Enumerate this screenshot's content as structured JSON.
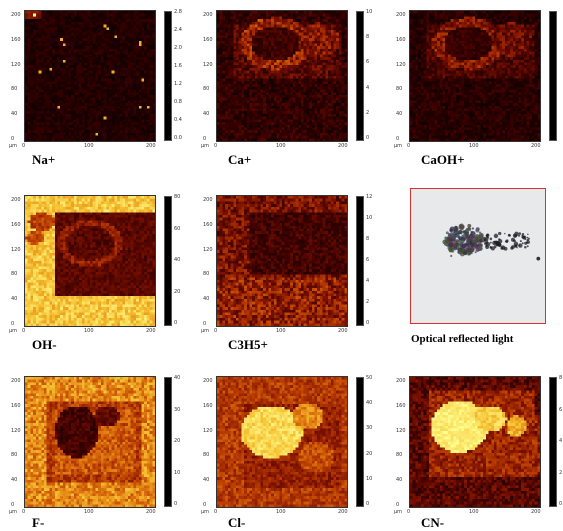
{
  "axis_unit": "μm",
  "x_ticks": [
    "0",
    "100",
    "200"
  ],
  "y_ticks": [
    "200",
    "160",
    "120",
    "80",
    "40",
    "0"
  ],
  "colormap": [
    "#000000",
    "#3a0000",
    "#7a1000",
    "#b83a00",
    "#e07a10",
    "#f5c030",
    "#ffff90"
  ],
  "optical_frame_color": "#d9312b",
  "panels": [
    {
      "label": "Na+",
      "colorbar_ticks": [
        "2.8",
        "2.4",
        "2.0",
        "1.6",
        "1.2",
        "0.8",
        "0.4",
        "0.0"
      ],
      "pattern": "sparse"
    },
    {
      "label": "Ca+",
      "colorbar_ticks": [
        "10",
        "8",
        "6",
        "4",
        "2",
        "0"
      ],
      "pattern": "ring"
    },
    {
      "label": "CaOH+",
      "colorbar_ticks": [
        "",
        "",
        "",
        "",
        "",
        ""
      ],
      "pattern": "ring_dim"
    },
    {
      "label": "OH-",
      "colorbar_ticks": [
        "80",
        "60",
        "40",
        "20",
        "0"
      ],
      "pattern": "oh"
    },
    {
      "label": "C3H5+",
      "colorbar_ticks": [
        "12",
        "10",
        "8",
        "6",
        "4",
        "2",
        "0"
      ],
      "pattern": "c3h5"
    },
    {
      "label": "Optical reflected light",
      "pattern": "optical"
    },
    {
      "label": "F-",
      "colorbar_ticks": [
        "40",
        "30",
        "20",
        "10",
        "0"
      ],
      "pattern": "f"
    },
    {
      "label": "Cl-",
      "colorbar_ticks": [
        "50",
        "40",
        "30",
        "20",
        "10",
        "0"
      ],
      "pattern": "cl"
    },
    {
      "label": "CN-",
      "colorbar_ticks": [
        "8",
        "6",
        "4",
        "2",
        "0"
      ],
      "pattern": "cn"
    }
  ]
}
